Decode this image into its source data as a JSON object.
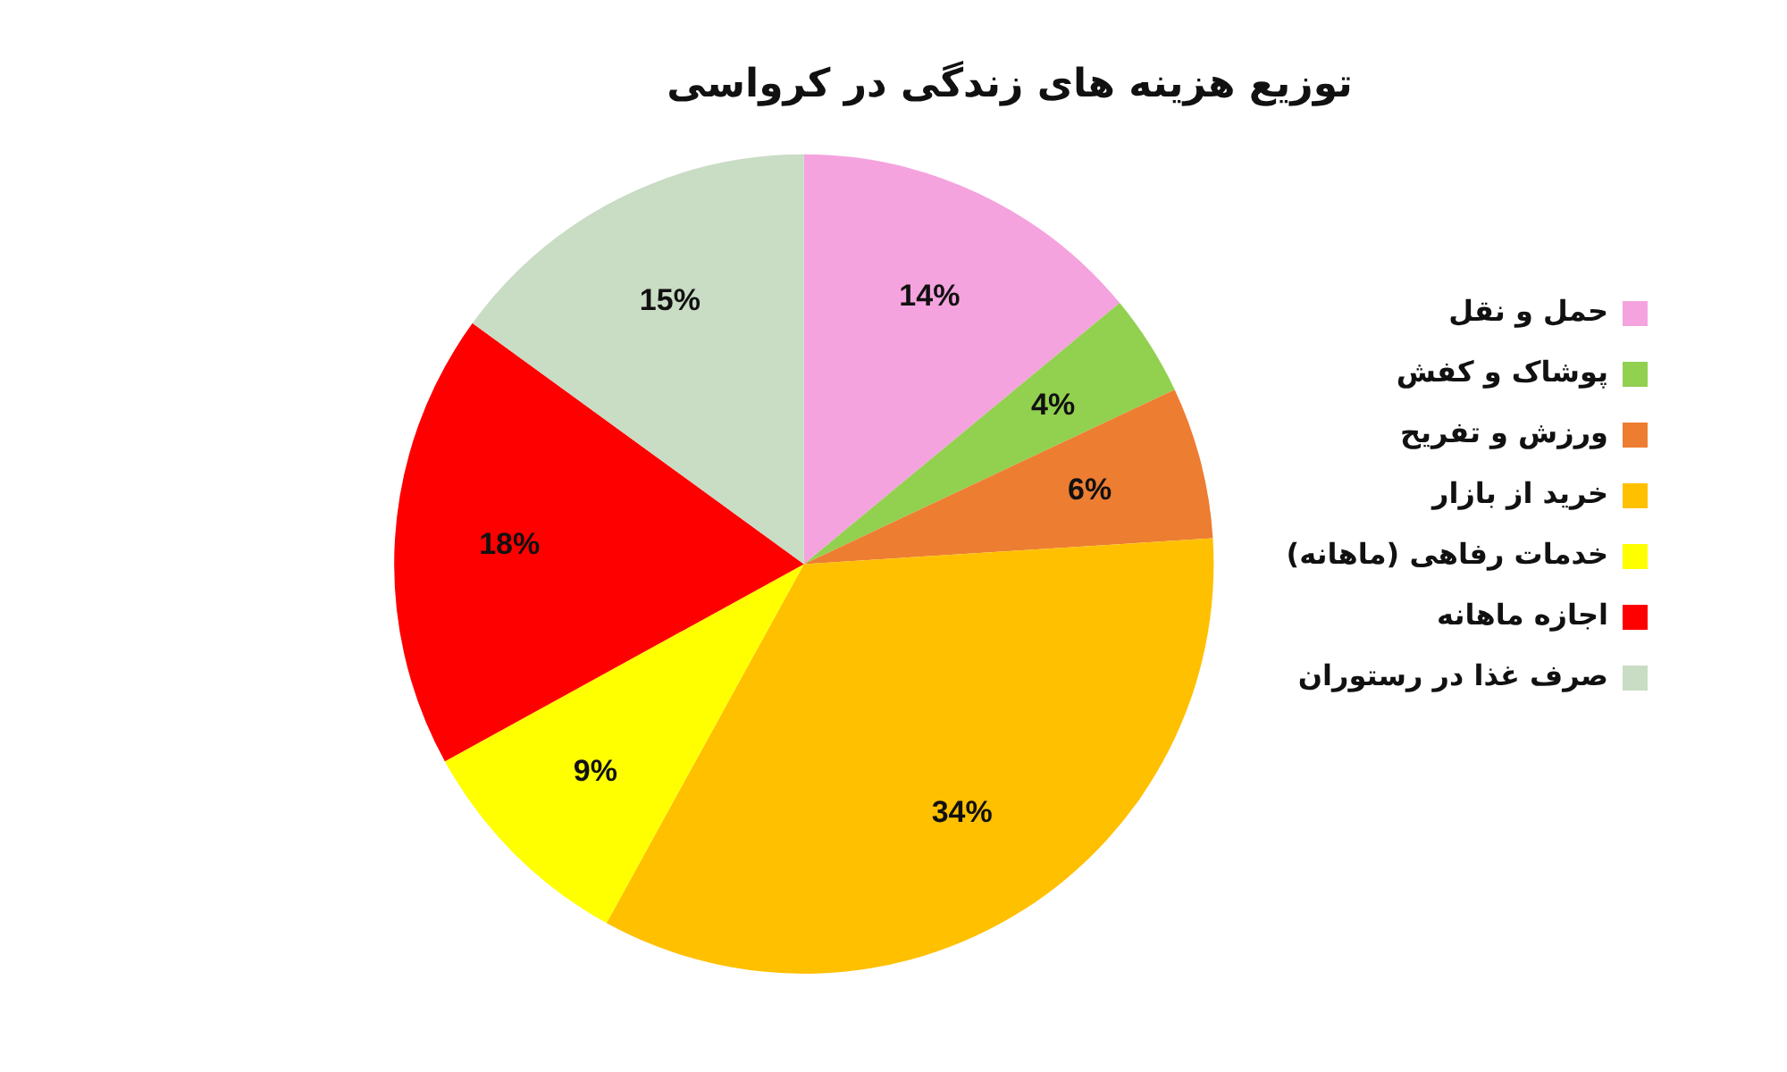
{
  "chart_data": {
    "type": "pie",
    "title": "توزیع هزینه های زندگی در کرواسی",
    "categories": [
      "حمل و نقل",
      "پوشاک و کفش",
      "ورزش و تفریح",
      "خرید از بازار",
      "خدمات رفاهی (ماهانه)",
      "اجازه ماهانه",
      "صرف غذا در رستوران"
    ],
    "values": [
      14,
      4,
      6,
      34,
      9,
      18,
      15
    ],
    "colors": [
      "#f5a3de",
      "#92d050",
      "#ed7d31",
      "#ffc000",
      "#ffff00",
      "#ff0000",
      "#c9dcc4"
    ],
    "value_labels": [
      "14%",
      "4%",
      "6%",
      "34%",
      "9%",
      "18%",
      "15%"
    ],
    "legend": "right"
  }
}
